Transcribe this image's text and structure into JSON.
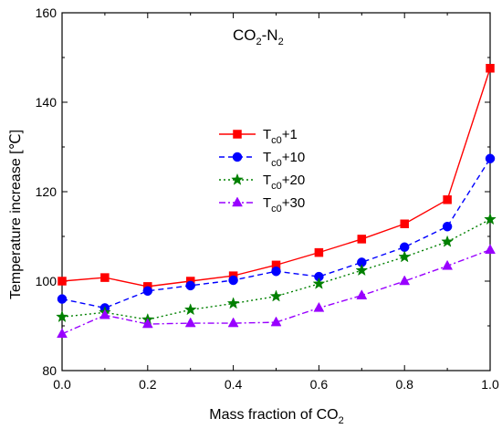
{
  "chart_data": {
    "type": "line",
    "annotation": {
      "main": "CO",
      "sub1": "2",
      "mid": "-N",
      "sub2": "2"
    },
    "xlabel": {
      "main": "Mass fraction of CO",
      "sub": "2"
    },
    "ylabel": "Temperature increase [℃]",
    "xlim": [
      0.0,
      1.0
    ],
    "ylim": [
      80,
      160
    ],
    "x_ticks": [
      "0.0",
      "0.2",
      "0.4",
      "0.6",
      "0.8",
      "1.0"
    ],
    "y_ticks": [
      "80",
      "100",
      "120",
      "140",
      "160"
    ],
    "grid": false,
    "legend_position": "center-left",
    "x": [
      0.0,
      0.1,
      0.2,
      0.3,
      0.4,
      0.5,
      0.6,
      0.7,
      0.8,
      0.9,
      1.0
    ],
    "series": [
      {
        "name": "Tc0+1",
        "label": {
          "main": "T",
          "sub": "c0",
          "suffix": "+1"
        },
        "color": "#ff0000",
        "marker": "square",
        "dash": "solid",
        "values": [
          100.0,
          100.8,
          98.8,
          100.0,
          101.2,
          103.6,
          106.4,
          109.4,
          112.8,
          118.2,
          147.6
        ]
      },
      {
        "name": "Tc0+10",
        "label": {
          "main": "T",
          "sub": "c0",
          "suffix": "+10"
        },
        "color": "#0000ff",
        "marker": "circle",
        "dash": "dashed",
        "values": [
          96.0,
          94.0,
          97.8,
          99.0,
          100.2,
          102.2,
          101.0,
          104.2,
          107.6,
          112.2,
          127.4
        ]
      },
      {
        "name": "Tc0+20",
        "label": {
          "main": "T",
          "sub": "c0",
          "suffix": "+20"
        },
        "color": "#008000",
        "marker": "star",
        "dash": "dotted",
        "values": [
          92.0,
          93.0,
          91.4,
          93.6,
          95.0,
          96.6,
          99.4,
          102.4,
          105.4,
          108.8,
          113.8
        ]
      },
      {
        "name": "Tc0+30",
        "label": {
          "main": "T",
          "sub": "c0",
          "suffix": "+30"
        },
        "color": "#9900ff",
        "marker": "triangle",
        "dash": "dashdot",
        "values": [
          88.2,
          92.4,
          90.4,
          90.6,
          90.6,
          90.8,
          94.0,
          96.8,
          100.0,
          103.4,
          107.0
        ]
      }
    ]
  }
}
